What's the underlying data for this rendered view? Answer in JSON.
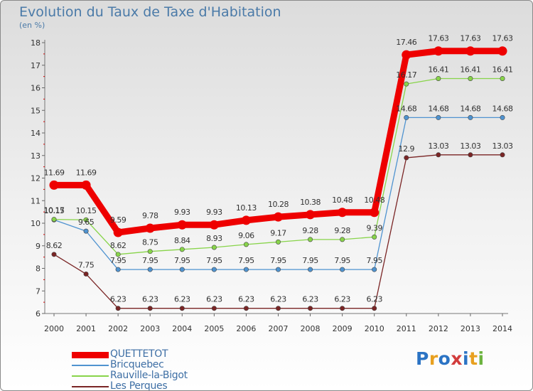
{
  "header": {
    "title": "Evolution du Taux de Taxe d'Habitation",
    "unit": "(en %)"
  },
  "brand": {
    "text": "Proxiti",
    "letter_colors": [
      "#2b73c4",
      "#e8a020",
      "#2b73c4",
      "#d23c3c",
      "#2b73c4",
      "#e8a020",
      "#6cb33f"
    ]
  },
  "chart_data": {
    "type": "line",
    "title": "Evolution du Taux de Taxe d'Habitation",
    "ylabel": "(en %)",
    "xlabel": "",
    "ylim": [
      6,
      18
    ],
    "yticks": [
      6,
      7,
      8,
      9,
      10,
      11,
      12,
      13,
      14,
      15,
      16,
      17,
      18
    ],
    "grid": false,
    "legend_position": "bottom-left",
    "x": [
      "2000",
      "2001",
      "2002",
      "2003",
      "2004",
      "2005",
      "2006",
      "2007",
      "2008",
      "2009",
      "2010",
      "2011",
      "2012",
      "2013",
      "2014"
    ],
    "series": [
      {
        "name": "QUETTETOT",
        "color": "#ee0000",
        "emphasis": true,
        "values": [
          11.69,
          11.69,
          9.59,
          9.78,
          9.93,
          9.93,
          10.13,
          10.28,
          10.38,
          10.48,
          10.48,
          17.46,
          17.63,
          17.63,
          17.63
        ],
        "labels": [
          "11.69",
          "11.69",
          "9.59",
          "9.78",
          "9.93",
          "9.93",
          "10.13",
          "10.28",
          "10.38",
          "10.48",
          "10.48",
          "17.46",
          "17.63",
          "17.63",
          "17.63"
        ]
      },
      {
        "name": "Bricquebec",
        "color": "#4f93d0",
        "values": [
          10.15,
          9.65,
          7.95,
          7.95,
          7.95,
          7.95,
          7.95,
          7.95,
          7.95,
          7.95,
          7.95,
          14.68,
          14.68,
          14.68,
          14.68
        ],
        "labels": [
          "10.15",
          "9.65",
          "7.95",
          "7.95",
          "7.95",
          "7.95",
          "7.95",
          "7.95",
          "7.95",
          "7.95",
          "7.95",
          "14.68",
          "14.68",
          "14.68",
          "14.68"
        ]
      },
      {
        "name": "Rauville-la-Bigot",
        "color": "#88d44a",
        "values": [
          10.17,
          10.15,
          8.62,
          8.75,
          8.84,
          8.93,
          9.06,
          9.17,
          9.28,
          9.28,
          9.39,
          16.17,
          16.41,
          16.41,
          16.41
        ],
        "labels": [
          "10.17",
          "10.15",
          "8.62",
          "8.75",
          "8.84",
          "8.93",
          "9.06",
          "9.17",
          "9.28",
          "9.28",
          "9.39",
          "16.17",
          "16.41",
          "16.41",
          "16.41"
        ]
      },
      {
        "name": "Les Perques",
        "color": "#7a2525",
        "values": [
          8.62,
          7.75,
          6.23,
          6.23,
          6.23,
          6.23,
          6.23,
          6.23,
          6.23,
          6.23,
          6.23,
          12.9,
          13.03,
          13.03,
          13.03
        ],
        "labels": [
          "8.62",
          "7.75",
          "6.23",
          "6.23",
          "6.23",
          "6.23",
          "6.23",
          "6.23",
          "6.23",
          "6.23",
          "6.23",
          "12.9",
          "13.03",
          "13.03",
          "13.03"
        ]
      }
    ]
  }
}
